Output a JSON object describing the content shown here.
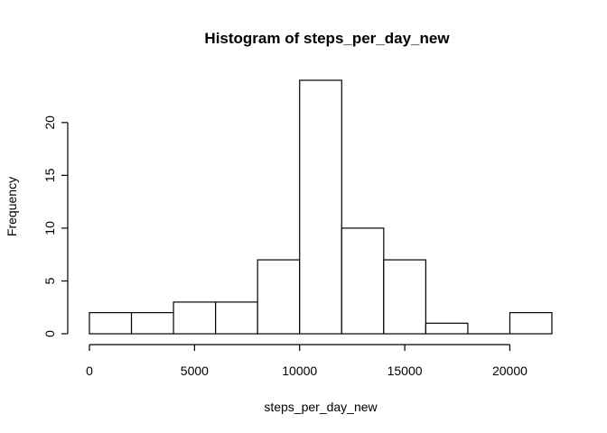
{
  "chart_data": {
    "type": "bar",
    "title": "Histogram of steps_per_day_new",
    "xlabel": "steps_per_day_new",
    "ylabel": "Frequency",
    "bins": [
      {
        "from": 0,
        "to": 2000,
        "count": 2
      },
      {
        "from": 2000,
        "to": 4000,
        "count": 2
      },
      {
        "from": 4000,
        "to": 6000,
        "count": 3
      },
      {
        "from": 6000,
        "to": 8000,
        "count": 3
      },
      {
        "from": 8000,
        "to": 10000,
        "count": 7
      },
      {
        "from": 10000,
        "to": 12000,
        "count": 24
      },
      {
        "from": 12000,
        "to": 14000,
        "count": 10
      },
      {
        "from": 14000,
        "to": 16000,
        "count": 7
      },
      {
        "from": 16000,
        "to": 18000,
        "count": 1
      },
      {
        "from": 18000,
        "to": 20000,
        "count": 0
      },
      {
        "from": 20000,
        "to": 22000,
        "count": 2
      }
    ],
    "xticks": [
      0,
      5000,
      10000,
      15000,
      20000
    ],
    "yticks": [
      0,
      5,
      10,
      15,
      20
    ],
    "xlim": [
      0,
      22000
    ],
    "ylim": [
      0,
      24
    ],
    "grid": false,
    "bar_fill": "#ffffff",
    "bar_stroke": "#000000"
  }
}
